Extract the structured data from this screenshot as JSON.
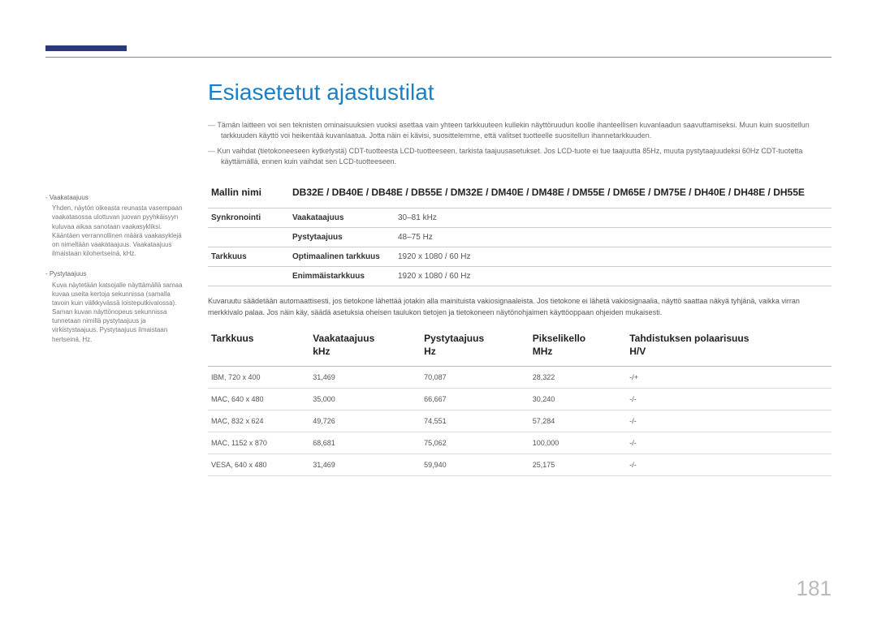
{
  "title": "Esiasetetut ajastustilat",
  "notes": [
    "Tämän laitteen voi sen teknisten ominaisuuksien vuoksi asettaa vain yhteen tarkkuuteen kullekin näyttöruudun koolle ihanteellisen kuvanlaadun saavuttamiseksi. Muun kuin suositellun tarkkuuden käyttö voi heikentää kuvanlaatua. Jotta näin ei kävisi, suosittelemme, että valitset tuotteelle suositellun ihannetarkkuuden.",
    "Kun vaihdat (tietokoneeseen kytketystä) CDT-tuotteesta LCD-tuotteeseen, tarkista taajuusasetukset. Jos LCD-tuote ei tue taajuutta 85Hz, muuta pystytaajuudeksi 60Hz CDT-tuotetta käyttämällä, ennen kuin vaihdat sen LCD-tuotteeseen."
  ],
  "sidebar": [
    {
      "title": "Vaakataajuus",
      "body": "Yhden, näytön oikeasta reunasta vasempaan vaakatasossa ulottuvan juovan pyyhkäisyyn kuluvaa aikaa sanotaan vaakasykliksi. Kääntäen verrannollinen määrä vaakasyklejä on nimeltään vaakataajuus. Vaakataajuus ilmaistaan kilohertseinä, kHz."
    },
    {
      "title": "Pystytaajuus",
      "body": "Kuva näytetään katsojalle näyttämällä samaa kuvaa useita kertoja sekunnissa (samalla tavoin kuin välkkyvässä loisteputkivalossa). Saman kuvan näyttönopeus sekunnissa tunnetaan nimillä pystytaajuus ja virkistystaajuus. Pystytaajuus ilmaistaan hertseinä, Hz."
    }
  ],
  "spec": {
    "modelLabel": "Mallin nimi",
    "modelValue": "DB32E / DB40E / DB48E / DB55E / DM32E / DM40E / DM48E / DM55E / DM65E / DM75E / DH40E / DH48E / DH55E",
    "rows": [
      {
        "label": "Synkronointi",
        "sublabel": "Vaakataajuus",
        "value": "30–81 kHz"
      },
      {
        "label": "",
        "sublabel": "Pystytaajuus",
        "value": "48–75 Hz"
      },
      {
        "label": "Tarkkuus",
        "sublabel": "Optimaalinen tarkkuus",
        "value": "1920 x 1080 / 60 Hz"
      },
      {
        "label": "",
        "sublabel": "Enimmäistarkkuus",
        "value": "1920 x 1080 / 60 Hz"
      }
    ]
  },
  "bodyText": "Kuvaruutu säädetään automaattisesti, jos tietokone lähettää jotakin alla mainituista vakiosignaaleista. Jos tietokone ei lähetä vakiosignaalia, näyttö saattaa näkyä tyhjänä, vaikka virran merkkivalo palaa. Jos näin käy, säädä asetuksia oheisen taulukon tietojen ja tietokoneen näytönohjaimen käyttöoppaan ohjeiden mukaisesti.",
  "timing": {
    "columns": [
      "Tarkkuus",
      "Vaakataajuus\nkHz",
      "Pystytaajuus\nHz",
      "Pikselikello\nMHz",
      "Tahdistuksen polaarisuus\nH/V"
    ],
    "rows": [
      [
        "IBM, 720 x 400",
        "31,469",
        "70,087",
        "28,322",
        "-/+"
      ],
      [
        "MAC, 640 x 480",
        "35,000",
        "66,667",
        "30,240",
        "-/-"
      ],
      [
        "MAC, 832 x 624",
        "49,726",
        "74,551",
        "57,284",
        "-/-"
      ],
      [
        "MAC, 1152 x 870",
        "68,681",
        "75,062",
        "100,000",
        "-/-"
      ],
      [
        "VESA, 640 x 480",
        "31,469",
        "59,940",
        "25,175",
        "-/-"
      ]
    ]
  },
  "pageNumber": "181"
}
